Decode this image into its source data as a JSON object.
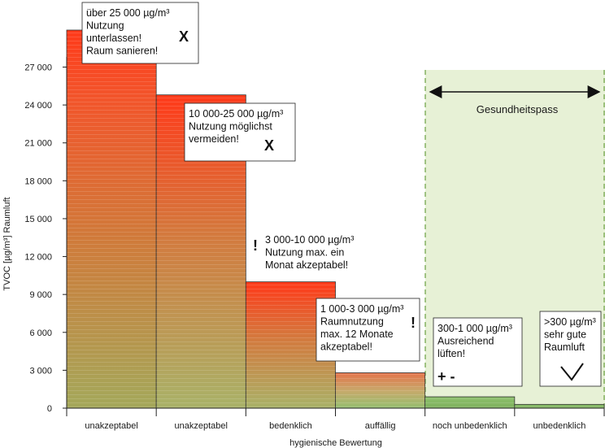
{
  "chart_data": {
    "type": "bar",
    "ylabel": "TVOC [µg/m³] Raumluft",
    "xlabel": "hygienische Bewertung",
    "ylim": [
      0,
      30000
    ],
    "yticks": [
      0,
      3000,
      6000,
      9000,
      12000,
      15000,
      18000,
      21000,
      24000,
      27000
    ],
    "ytick_labels": [
      "0",
      "3 000",
      "6 000",
      "9 000",
      "12 000",
      "15 000",
      "18 000",
      "21 000",
      "24 000",
      "27 000"
    ],
    "categories": [
      "unakzeptabel",
      "unakzeptabel",
      "bedenklich",
      "auffällig",
      "noch unbedenklich",
      "unbedenklich"
    ],
    "values": [
      30000,
      24800,
      10000,
      2800,
      900,
      300
    ],
    "annotations": [
      {
        "lines": [
          "über 25 000 µg/m³",
          "Nutzung",
          "unterlassen!",
          "Raum sanieren!"
        ],
        "symbol": "X"
      },
      {
        "lines": [
          "10 000-25 000 µg/m³",
          "Nutzung möglichst",
          "vermeiden!"
        ],
        "symbol": "X"
      },
      {
        "lines": [
          "3 000-10 000 µg/m³",
          "Nutzung max. ein",
          "Monat akzeptabel!"
        ],
        "symbol": "!"
      },
      {
        "lines": [
          "1 000-3 000 µg/m³",
          "Raumnutzung",
          "max. 12 Monate",
          "akzeptabel!"
        ],
        "symbol": "!"
      },
      {
        "lines": [
          "300-1 000 µg/m³",
          "Ausreichend",
          "lüften!"
        ],
        "symbol": "+ -"
      },
      {
        "lines": [
          ">300 µg/m³",
          "sehr gute",
          "Raumluft"
        ],
        "symbol": "check"
      }
    ],
    "region_label": "Gesundheitspass",
    "region_color": "#e7f1d6"
  }
}
